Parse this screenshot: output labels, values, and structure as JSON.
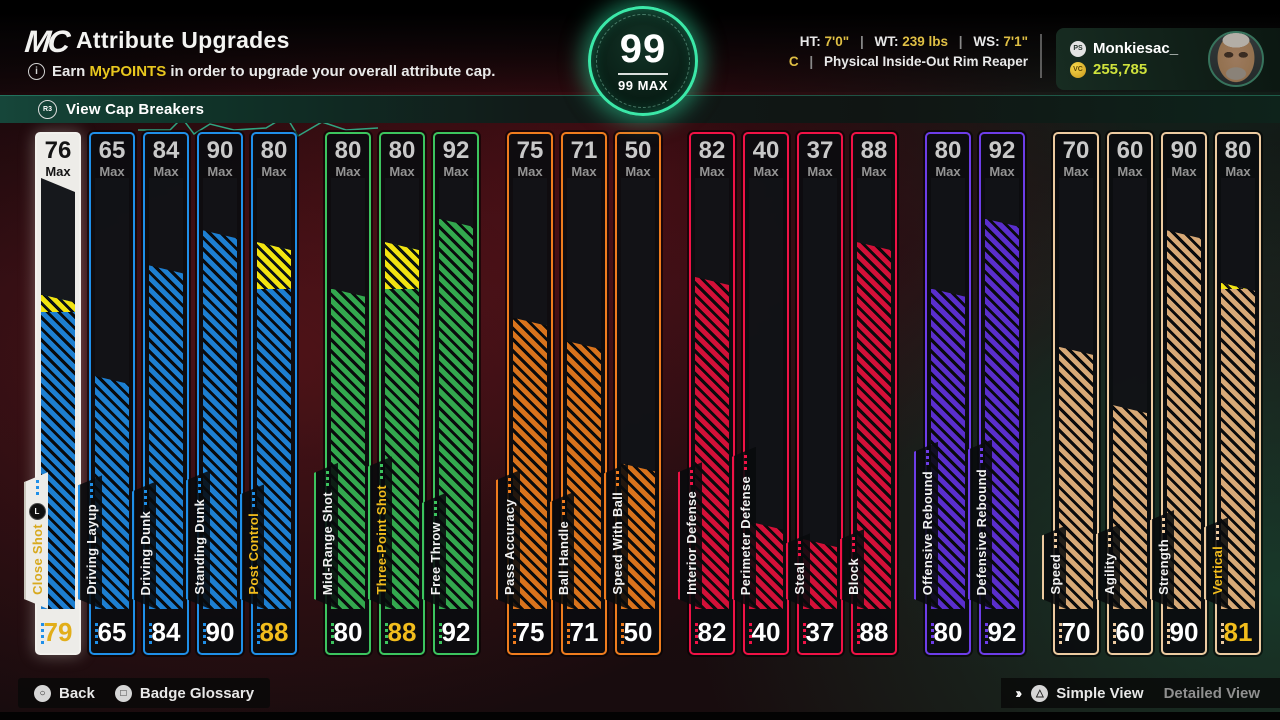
{
  "header": {
    "logo": "MC",
    "title": "Attribute Upgrades",
    "subtitle_prefix": "Earn ",
    "subtitle_highlight": "MyPOINTS",
    "subtitle_suffix": " in order to upgrade your overall attribute cap.",
    "info_icon_glyph": "i"
  },
  "cap_breakers": {
    "button_glyph": "R3",
    "label": "View Cap Breakers"
  },
  "overall": {
    "value": "99",
    "max_label": "99 MAX"
  },
  "player": {
    "pipe": "|",
    "stats": [
      {
        "k": "HT:",
        "v": "7'0\""
      },
      {
        "k": "WT:",
        "v": "239 lbs"
      },
      {
        "k": "WS:",
        "v": "7'1\""
      }
    ],
    "position": "C",
    "archetype": "Physical Inside-Out Rim Reaper",
    "platform_glyph": "PS",
    "name": "Monkiesac_",
    "vc_glyph": "VC",
    "vc_amount": "255,785"
  },
  "footer": {
    "back_glyph": "○",
    "back_label": "Back",
    "glossary_glyph": "□",
    "glossary_label": "Badge Glossary",
    "chevrons": "››",
    "view_glyph": "△",
    "simple_view": "Simple View",
    "detailed_view": "Detailed View"
  },
  "chart_data": {
    "type": "bar",
    "title": "Attribute Upgrades",
    "scale": {
      "min": 25,
      "max": 99
    },
    "max_suffix": "Max",
    "capbreaker_color": "#f2e411",
    "selected_frame_color": "#edece8",
    "groups": [
      {
        "id": "finishing",
        "colors": {
          "border": "#1f8fe8",
          "fill": "#1d7fd1"
        },
        "bars": [
          {
            "label": "Close Shot",
            "max": 76,
            "value": 79,
            "selected": true
          },
          {
            "label": "Driving Layup",
            "max": 65,
            "value": 65
          },
          {
            "label": "Driving Dunk",
            "max": 84,
            "value": 84
          },
          {
            "label": "Standing Dunk",
            "max": 90,
            "value": 90
          },
          {
            "label": "Post Control",
            "max": 80,
            "value": 88
          }
        ]
      },
      {
        "id": "shooting",
        "colors": {
          "border": "#3cc45e",
          "fill": "#33a84e"
        },
        "bars": [
          {
            "label": "Mid-Range Shot",
            "max": 80,
            "value": 80
          },
          {
            "label": "Three-Point Shot",
            "max": 80,
            "value": 88
          },
          {
            "label": "Free Throw",
            "max": 92,
            "value": 92
          }
        ]
      },
      {
        "id": "playmaking",
        "colors": {
          "border": "#ef7c1e",
          "fill": "#d9731c"
        },
        "bars": [
          {
            "label": "Pass Accuracy",
            "max": 75,
            "value": 75
          },
          {
            "label": "Ball Handle",
            "max": 71,
            "value": 71
          },
          {
            "label": "Speed With Ball",
            "max": 50,
            "value": 50
          }
        ]
      },
      {
        "id": "defense",
        "colors": {
          "border": "#f01246",
          "fill": "#d31038"
        },
        "bars": [
          {
            "label": "Interior Defense",
            "max": 82,
            "value": 82
          },
          {
            "label": "Perimeter Defense",
            "max": 40,
            "value": 40
          },
          {
            "label": "Steal",
            "max": 37,
            "value": 37
          },
          {
            "label": "Block",
            "max": 88,
            "value": 88
          }
        ]
      },
      {
        "id": "rebounding",
        "colors": {
          "border": "#6d3de8",
          "fill": "#5a2ecc"
        },
        "bars": [
          {
            "label": "Offensive Rebound",
            "max": 80,
            "value": 80
          },
          {
            "label": "Defensive Rebound",
            "max": 92,
            "value": 92
          }
        ]
      },
      {
        "id": "physicals",
        "colors": {
          "border": "#eccaa0",
          "fill": "#d7a977"
        },
        "bars": [
          {
            "label": "Speed",
            "max": 70,
            "value": 70
          },
          {
            "label": "Agility",
            "max": 60,
            "value": 60
          },
          {
            "label": "Strength",
            "max": 90,
            "value": 90
          },
          {
            "label": "Vertical",
            "max": 80,
            "value": 81
          }
        ]
      }
    ]
  }
}
